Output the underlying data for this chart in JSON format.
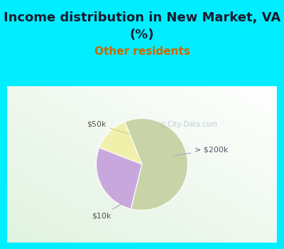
{
  "title_line1": "Income distribution in New Market, VA",
  "title_line2": "(%)",
  "subtitle": "Other residents",
  "title_fontsize": 13,
  "subtitle_fontsize": 11,
  "title_color": "#1a1a2e",
  "subtitle_color": "#cc6600",
  "slices": [
    {
      "label": "$50k",
      "value": 13,
      "color": "#f0f0aa"
    },
    {
      "label": "> $200k",
      "value": 27,
      "color": "#c8a8dc"
    },
    {
      "label": "$10k",
      "value": 60,
      "color": "#c8d4a8"
    }
  ],
  "bg_cyan": "#00eeff",
  "bg_chart_top_right": "#e8f8f0",
  "bg_chart_bottom_left": "#c8ead8",
  "watermark": "City-Data.com",
  "label_fontsize": 8,
  "startangle": 112
}
